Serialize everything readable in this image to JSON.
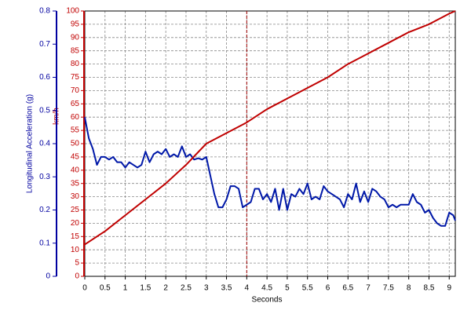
{
  "chart_data": {
    "type": "line",
    "xlabel": "Seconds",
    "ylabel": "Longitudinal Acceleration (g)",
    "y2label": "km/h",
    "xlim": [
      0,
      9.15
    ],
    "xticks": [
      0,
      0.5,
      1,
      1.5,
      2,
      2.5,
      3,
      3.5,
      4,
      4.5,
      5,
      5.5,
      6,
      6.5,
      7,
      7.5,
      8,
      8.5,
      9
    ],
    "ylim": [
      0,
      0.8
    ],
    "yticks": [
      0,
      0.1,
      0.2,
      0.3,
      0.4,
      0.5,
      0.6,
      0.7,
      0.8
    ],
    "y2lim": [
      0,
      100
    ],
    "y2ticks": [
      0,
      5,
      10,
      15,
      20,
      25,
      30,
      35,
      40,
      45,
      50,
      55,
      60,
      65,
      70,
      75,
      80,
      85,
      90,
      95,
      100
    ],
    "ycolor": "#0000a0",
    "y2color": "#c00000",
    "grid": true,
    "cursor_x": 4,
    "series": [
      {
        "color": "#0018a8",
        "x": [
          0,
          0.1,
          0.2,
          0.3,
          0.4,
          0.5,
          0.6,
          0.7,
          0.8,
          0.9,
          1,
          1.1,
          1.2,
          1.3,
          1.4,
          1.5,
          1.6,
          1.7,
          1.8,
          1.9,
          2,
          2.1,
          2.2,
          2.3,
          2.4,
          2.5,
          2.6,
          2.7,
          2.8,
          2.9,
          3,
          3.1,
          3.2,
          3.3,
          3.4,
          3.5,
          3.6,
          3.7,
          3.8,
          3.9,
          4,
          4.1,
          4.2,
          4.3,
          4.4,
          4.5,
          4.6,
          4.7,
          4.8,
          4.9,
          5,
          5.1,
          5.2,
          5.3,
          5.4,
          5.5,
          5.6,
          5.7,
          5.8,
          5.9,
          6,
          6.1,
          6.2,
          6.3,
          6.4,
          6.5,
          6.6,
          6.7,
          6.8,
          6.9,
          7,
          7.1,
          7.2,
          7.3,
          7.4,
          7.5,
          7.6,
          7.7,
          7.8,
          7.9,
          8,
          8.1,
          8.2,
          8.3,
          8.4,
          8.5,
          8.6,
          8.7,
          8.8,
          8.9,
          9,
          9.1,
          9.15
        ],
        "values": [
          0.48,
          0.416,
          0.384,
          0.336,
          0.36,
          0.36,
          0.352,
          0.36,
          0.344,
          0.344,
          0.328,
          0.344,
          0.336,
          0.328,
          0.336,
          0.376,
          0.344,
          0.368,
          0.376,
          0.368,
          0.384,
          0.36,
          0.368,
          0.36,
          0.392,
          0.36,
          0.368,
          0.352,
          0.356,
          0.352,
          0.36,
          0.304,
          0.248,
          0.208,
          0.208,
          0.232,
          0.272,
          0.272,
          0.264,
          0.208,
          0.216,
          0.224,
          0.264,
          0.264,
          0.232,
          0.248,
          0.224,
          0.264,
          0.2,
          0.264,
          0.2,
          0.248,
          0.24,
          0.264,
          0.248,
          0.28,
          0.232,
          0.24,
          0.232,
          0.272,
          0.256,
          0.248,
          0.24,
          0.232,
          0.208,
          0.248,
          0.232,
          0.28,
          0.224,
          0.256,
          0.224,
          0.264,
          0.256,
          0.24,
          0.232,
          0.208,
          0.216,
          0.208,
          0.216,
          0.216,
          0.216,
          0.248,
          0.224,
          0.216,
          0.192,
          0.2,
          0.176,
          0.16,
          0.152,
          0.152,
          0.192,
          0.184,
          0.168
        ]
      },
      {
        "color": "#c00000",
        "axis": "y2",
        "x": [
          0,
          0.5,
          1,
          1.5,
          2,
          2.5,
          3,
          3.5,
          4,
          4.5,
          5,
          5.5,
          6,
          6.5,
          7,
          7.5,
          8,
          8.5,
          9,
          9.15
        ],
        "values": [
          12,
          17,
          23,
          29,
          35,
          42,
          50,
          54,
          58,
          63,
          67,
          71,
          75,
          80,
          84,
          88,
          92,
          95,
          99,
          100
        ]
      }
    ]
  }
}
